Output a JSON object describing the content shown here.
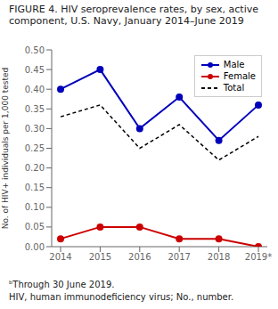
{
  "chart_data": {
    "type": "line",
    "title": "FIGURE 4. HIV seroprevalence rates, by sex, active component, U.S. Navy, January 2014–June 2019",
    "y_label": "No. of HIV+ individuals per 1,000 tested",
    "categories": [
      "2014",
      "2015",
      "2016",
      "2017",
      "2018",
      "2019*"
    ],
    "series": [
      {
        "name": "Male",
        "color": "#0000bb",
        "marker": "circle",
        "line_style": "solid",
        "values": [
          0.4,
          0.45,
          0.3,
          0.38,
          0.27,
          0.36
        ]
      },
      {
        "name": "Female",
        "color": "#cc0000",
        "marker": "circle",
        "line_style": "solid",
        "values": [
          0.02,
          0.05,
          0.05,
          0.02,
          0.02,
          0.0
        ]
      },
      {
        "name": "Total",
        "color": "#000000",
        "marker": "none",
        "line_style": "dashed",
        "values": [
          0.33,
          0.36,
          0.25,
          0.31,
          0.22,
          0.28
        ]
      }
    ],
    "ylim": [
      0.0,
      0.5
    ],
    "yticks": [
      {
        "value": 0.0,
        "label": "0.00"
      },
      {
        "value": 0.05,
        "label": "0.05"
      },
      {
        "value": 0.1,
        "label": "0.10"
      },
      {
        "value": 0.15,
        "label": "0.15"
      },
      {
        "value": 0.2,
        "label": "0.20"
      },
      {
        "value": 0.25,
        "label": "0.25"
      },
      {
        "value": 0.3,
        "label": "0.30"
      },
      {
        "value": 0.35,
        "label": "0.35"
      },
      {
        "value": 0.4,
        "label": "0.40"
      },
      {
        "value": 0.45,
        "label": "0.45"
      },
      {
        "value": 0.5,
        "label": "0.50"
      }
    ],
    "grid": false,
    "legend": "upper right",
    "annotations": [
      "ᵇThrough 30 June 2019.",
      "HIV, human immunodeficiency virus; No., number."
    ]
  }
}
